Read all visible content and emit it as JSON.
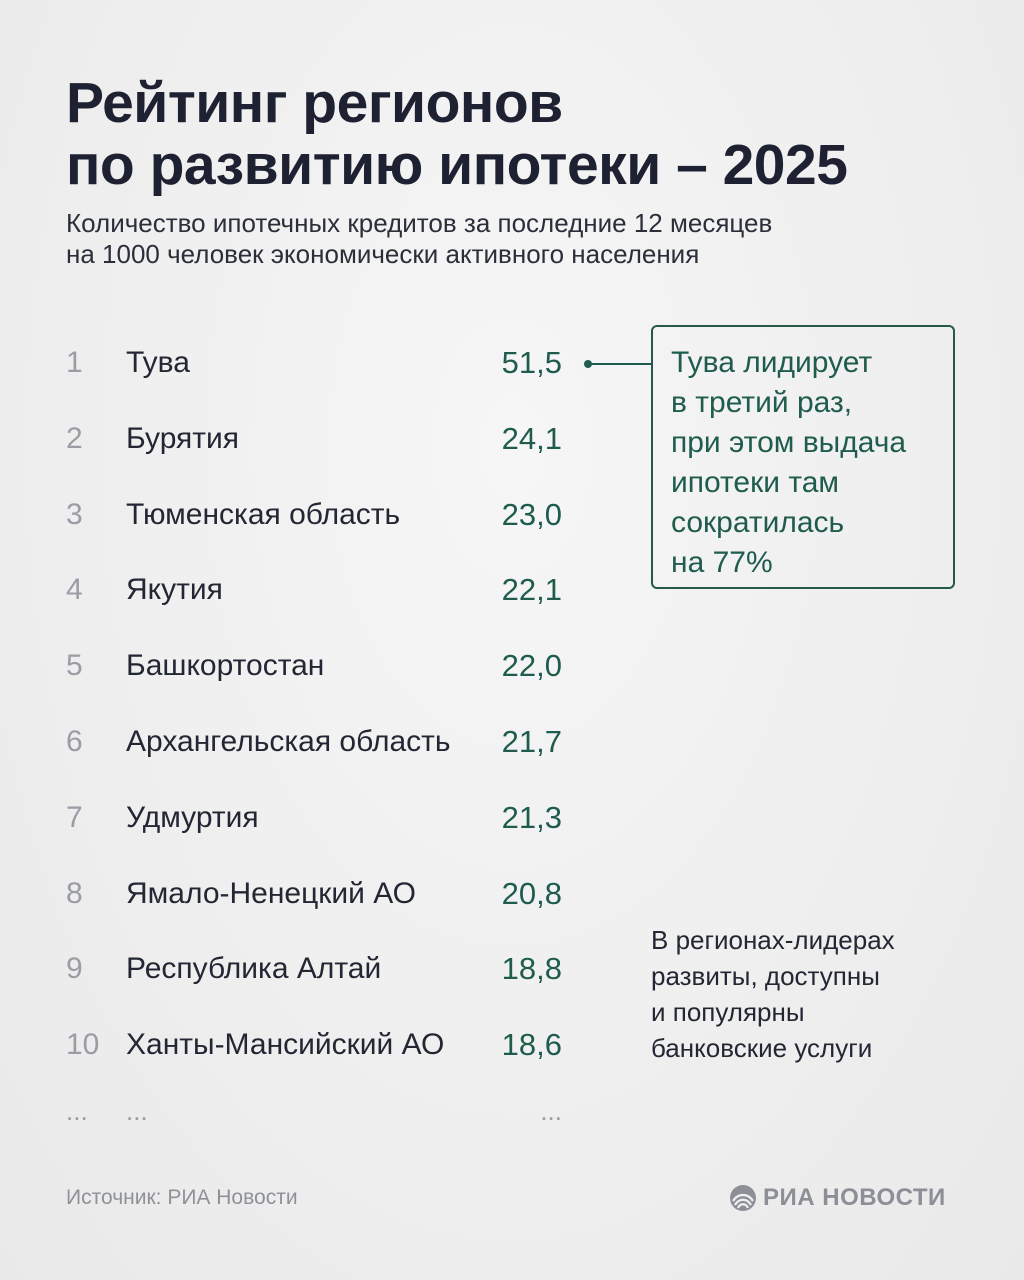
{
  "title": {
    "line1": "Рейтинг регионов",
    "line2": "по развитию ипотеки – 2025"
  },
  "subtitle": {
    "line1": "Количество ипотечных кредитов за последние 12 месяцев",
    "line2": "на 1000 человек экономически активного населения"
  },
  "chart_data": {
    "type": "table",
    "title": "Рейтинг регионов по развитию ипотеки – 2025",
    "subtitle": "Количество ипотечных кредитов за последние 12 месяцев на 1000 человек экономически активного населения",
    "columns": [
      "rank",
      "region",
      "value"
    ],
    "rows": [
      {
        "rank": "1",
        "region": "Тува",
        "value": "51,5"
      },
      {
        "rank": "2",
        "region": "Бурятия",
        "value": "24,1"
      },
      {
        "rank": "3",
        "region": "Тюменская область",
        "value": "23,0"
      },
      {
        "rank": "4",
        "region": "Якутия",
        "value": "22,1"
      },
      {
        "rank": "5",
        "region": "Башкортостан",
        "value": "22,0"
      },
      {
        "rank": "6",
        "region": "Архангельская область",
        "value": "21,7"
      },
      {
        "rank": "7",
        "region": "Удмуртия",
        "value": "21,3"
      },
      {
        "rank": "8",
        "region": "Ямало-Ненецкий АО",
        "value": "20,8"
      },
      {
        "rank": "9",
        "region": "Республика Алтай",
        "value": "18,8"
      },
      {
        "rank": "10",
        "region": "Ханты-Мансийский АО",
        "value": "18,6"
      }
    ],
    "continuation": {
      "rank": "...",
      "region": "...",
      "value": "..."
    }
  },
  "callout": {
    "lines": [
      "Тува лидирует",
      "в третий раз,",
      "при этом выдача",
      "ипотеки там",
      "сократилась",
      "на 77%"
    ]
  },
  "note": {
    "lines": [
      "В регионах-лидерах",
      "развиты, доступны",
      "и популярны",
      "банковские услуги"
    ]
  },
  "footer": {
    "source": "Источник: РИА Новости",
    "brand": "РИА НОВОСТИ"
  },
  "colors": {
    "accent": "#1f5c4d",
    "text": "#1d2131",
    "muted": "#9a9da3",
    "background": "#f0f0f0"
  },
  "icons": {
    "brand_logo": "ria-novosti-logo-icon"
  }
}
